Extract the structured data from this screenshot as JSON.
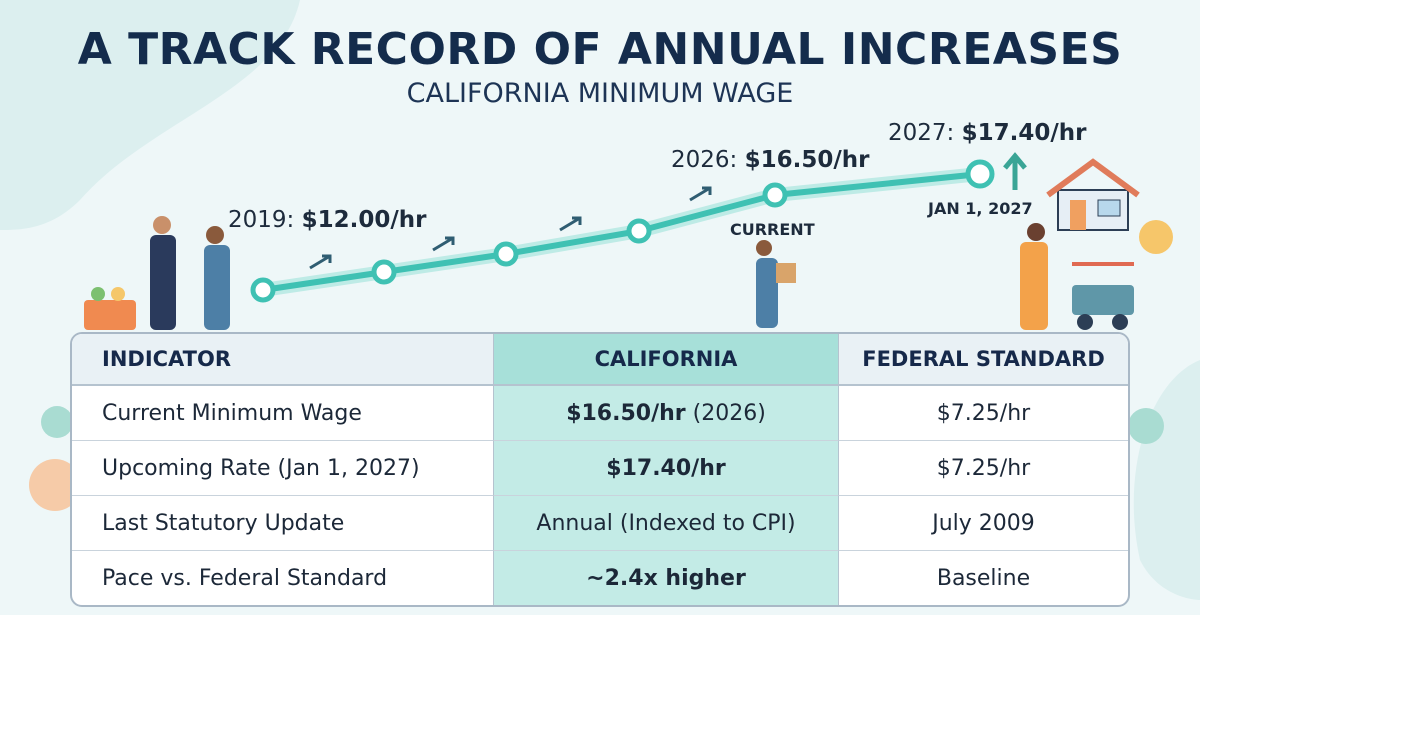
{
  "header": {
    "title": "A TRACK RECORD OF ANNUAL INCREASES",
    "subtitle": "CALIFORNIA MINIMUM WAGE"
  },
  "timeline": {
    "labels": [
      {
        "prefix": "2019: ",
        "rate": "$12.00/hr"
      },
      {
        "prefix": "2026: ",
        "rate": "$16.50/hr",
        "tag": "CURRENT"
      },
      {
        "prefix": "2027: ",
        "rate": "$17.40/hr",
        "tag": "JAN 1, 2027"
      }
    ]
  },
  "table": {
    "columns": [
      "INDICATOR",
      "CALIFORNIA",
      "FEDERAL STANDARD"
    ],
    "rows": [
      [
        {
          "text": "Current Minimum Wage"
        },
        {
          "bold": "$16.50/hr",
          "text": " (2026)"
        },
        {
          "text": "$7.25/hr"
        }
      ],
      [
        {
          "text": "Upcoming Rate (Jan 1, 2027)"
        },
        {
          "bold": "$17.40/hr"
        },
        {
          "text": "$7.25/hr"
        }
      ],
      [
        {
          "text": "Last Statutory Update"
        },
        {
          "text": "Annual (Indexed to CPI)"
        },
        {
          "text": "July 2009"
        }
      ],
      [
        {
          "text": "Pace vs. Federal Standard"
        },
        {
          "bold": "~2.4x higher"
        },
        {
          "text": "Baseline"
        }
      ]
    ]
  }
}
